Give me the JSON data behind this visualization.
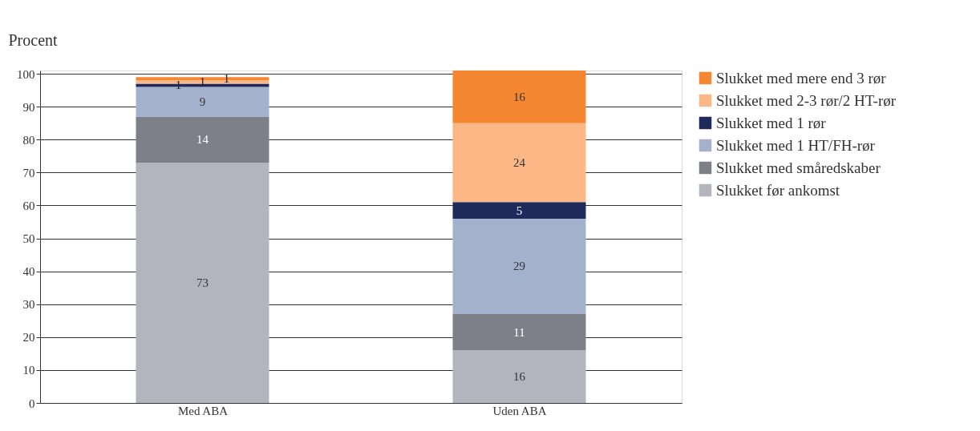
{
  "chart_data": {
    "type": "bar",
    "stacked": true,
    "ylabel": "Procent",
    "categories": [
      "Med ABA",
      "Uden ABA"
    ],
    "series": [
      {
        "name": "Slukket før ankomst",
        "color": "#b2b5bd",
        "values": [
          73,
          16
        ]
      },
      {
        "name": "Slukket med småredskaber",
        "color": "#7e8089",
        "values": [
          14,
          11
        ]
      },
      {
        "name": "Slukket med 1 HT/FH-rør",
        "color": "#a4b1cd",
        "values": [
          9,
          29
        ]
      },
      {
        "name": "Slukket med 1 rør",
        "color": "#1f2a5c",
        "values": [
          1,
          5
        ]
      },
      {
        "name": "Slukket med 2-3 rør/2 HT-rør",
        "color": "#fbb886",
        "values": [
          1,
          24
        ]
      },
      {
        "name": "Slukket med mere end 3 rør",
        "color": "#f58733",
        "values": [
          1,
          16
        ]
      }
    ],
    "ylim": [
      0,
      101
    ],
    "yticks": [
      0,
      10,
      20,
      30,
      40,
      50,
      60,
      70,
      80,
      90,
      100
    ],
    "grid": "y",
    "legend": "right",
    "data_labels": true
  }
}
